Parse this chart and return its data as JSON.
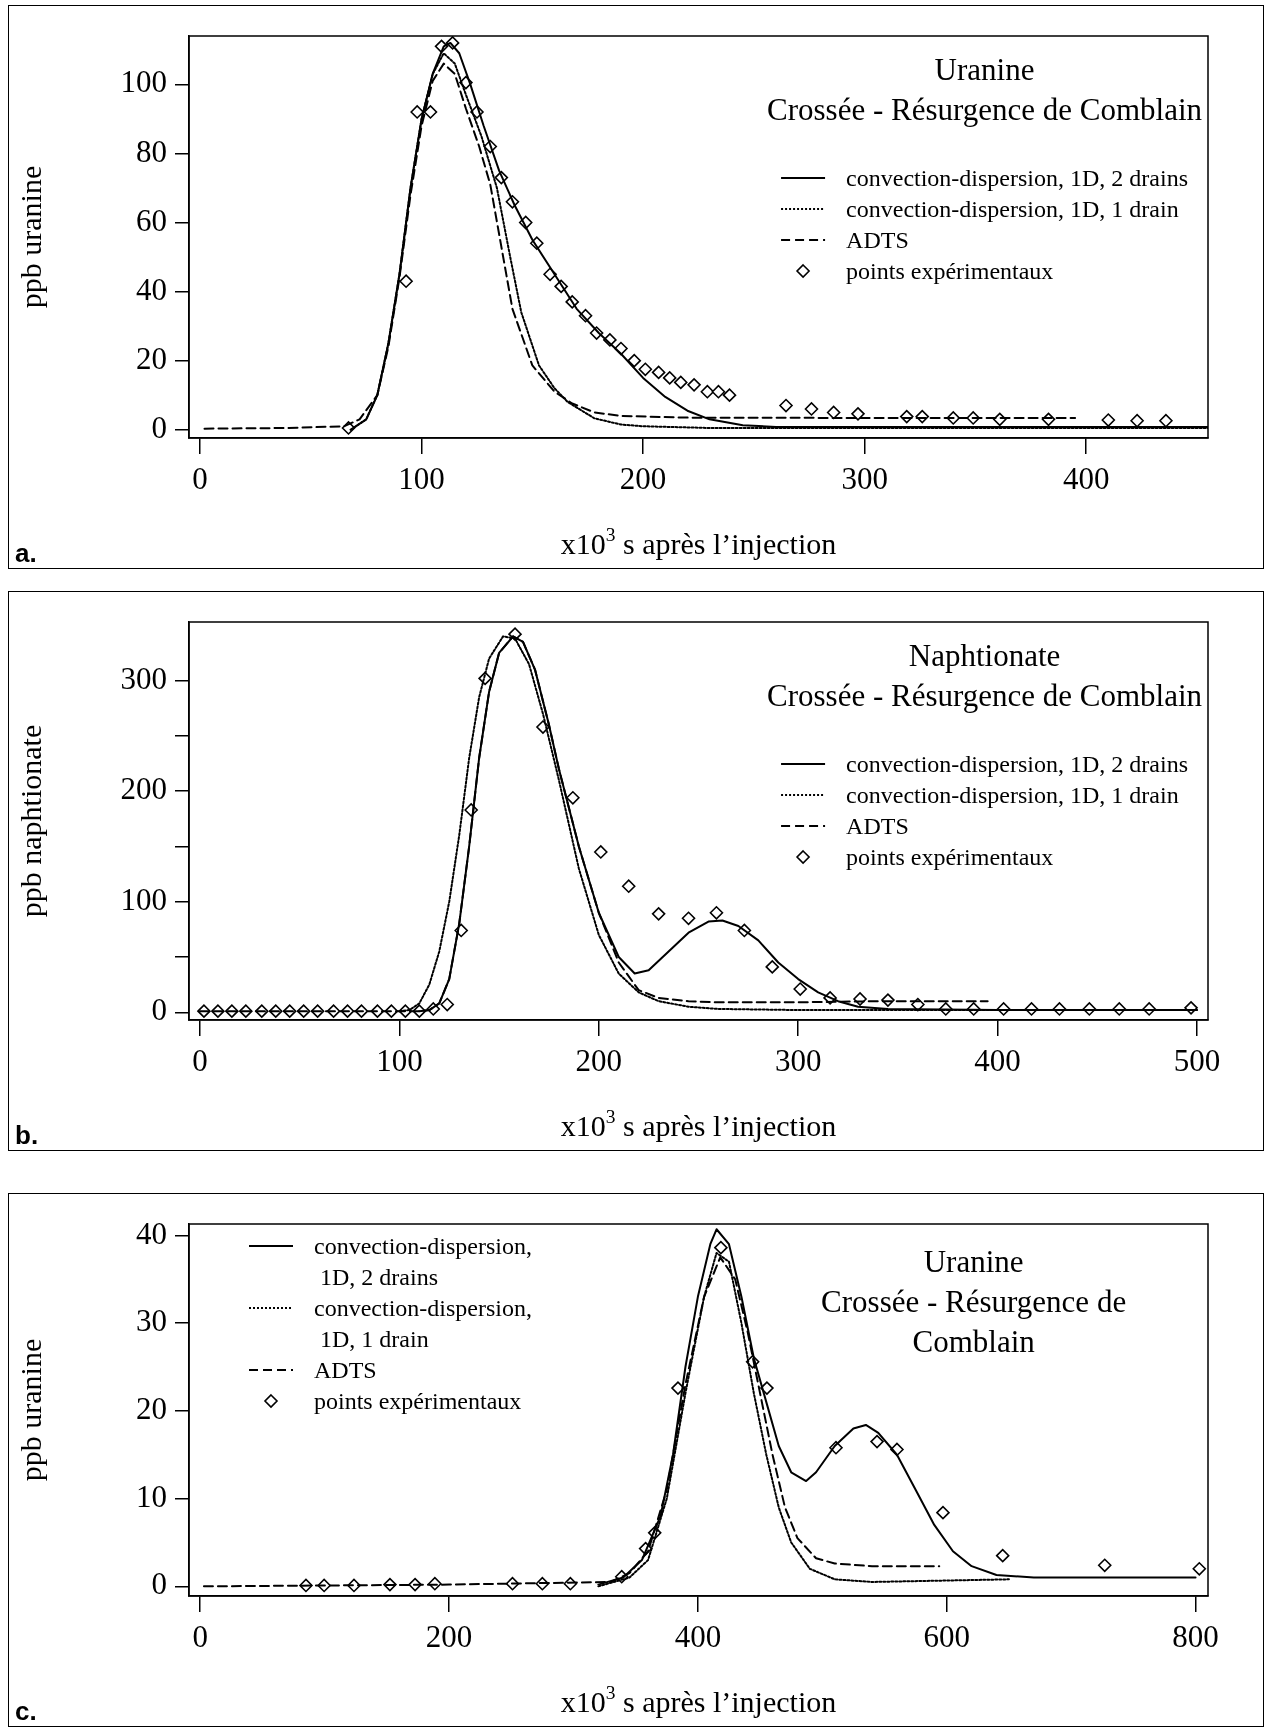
{
  "chart_data": [
    {
      "type": "line",
      "title": "Uranine",
      "subtitle": "Crossée - Résurgence de Comblain",
      "xlabel": "x10$^{3}$ s après l’injection",
      "ylabel": "ppb uranine",
      "annotations": [
        "a."
      ],
      "xlim": [
        -5,
        455
      ],
      "ylim": [
        -2.4,
        114
      ],
      "xticks": [
        0,
        100,
        200,
        300,
        400
      ],
      "yticks": [
        0,
        20,
        40,
        60,
        80,
        100
      ],
      "legend": "top right",
      "series": [
        {
          "name": "convection-dispersion, 1D, 2 drains",
          "line_style": "solid",
          "color": "#000000",
          "x": [
            68,
            75,
            80,
            85,
            90,
            95,
            100,
            105,
            110,
            113,
            117,
            122,
            128,
            135,
            142,
            150,
            160,
            170,
            180,
            190,
            200,
            210,
            220,
            230,
            245,
            260,
            300,
            455
          ],
          "values": [
            0,
            3,
            10,
            25,
            45,
            70,
            90,
            103,
            111,
            112,
            109,
            100,
            88,
            75,
            65,
            55,
            45,
            35,
            28,
            22,
            15,
            9.5,
            5.5,
            3,
            1.3,
            0.8,
            0.8,
            0.8
          ]
        },
        {
          "name": "convection-dispersion, 1D, 1 drain",
          "line_style": "dotted",
          "color": "#000000",
          "x": [
            68,
            75,
            80,
            85,
            90,
            95,
            100,
            105,
            110,
            115,
            120,
            127,
            134,
            140,
            145,
            153,
            160,
            166,
            178,
            190,
            200,
            230,
            455
          ],
          "values": [
            0,
            3,
            10,
            25,
            45,
            70,
            90,
            103,
            109,
            106,
            97,
            85,
            70,
            50,
            34,
            18.6,
            12,
            8,
            3.3,
            1.5,
            1,
            0.5,
            0.5
          ]
        },
        {
          "name": "ADTS",
          "line_style": "dashed",
          "color": "#000000",
          "x": [
            2,
            40,
            65,
            72,
            80,
            85,
            90,
            95,
            100,
            105,
            110,
            115,
            120,
            126,
            131,
            136,
            141,
            150,
            160,
            168,
            178,
            190,
            220,
            300,
            395
          ],
          "values": [
            0.3,
            0.5,
            1,
            3,
            10,
            24,
            44,
            68,
            88,
            101,
            106,
            103,
            93,
            82,
            71,
            53,
            35,
            18.6,
            11,
            7.6,
            5,
            4,
            3.5,
            3.4,
            3.4
          ]
        },
        {
          "name": "points expérimentaux",
          "type": "scatter",
          "marker": "diamond",
          "color": "#000000",
          "x": [
            67,
            93,
            98,
            104,
            109,
            114,
            120,
            125,
            131,
            136,
            141,
            147,
            152,
            158,
            163,
            168,
            174,
            179,
            185,
            190,
            196,
            201,
            207,
            212,
            217,
            223,
            229,
            234,
            239,
            264.5,
            276,
            286,
            297,
            319,
            326,
            340,
            349,
            361,
            383,
            410,
            423,
            436
          ],
          "values": [
            0.5,
            43,
            92,
            92,
            111,
            112,
            100.5,
            92,
            82,
            73,
            66,
            60,
            54,
            45,
            41.5,
            37,
            33,
            28,
            26,
            23.5,
            20,
            17.5,
            16.6,
            15,
            13.7,
            13,
            11,
            11,
            10,
            7,
            6,
            5,
            4.6,
            3.8,
            3.8,
            3.4,
            3.4,
            3,
            3,
            2.8,
            2.6,
            2.6
          ]
        }
      ]
    },
    {
      "type": "line",
      "title": "Naphtionate",
      "subtitle": "Crossée - Résurgence de Comblain",
      "xlabel": "x10$^{3}$ s après l’injection",
      "ylabel": "ppb naphtionate",
      "annotations": [
        "b."
      ],
      "xlim": [
        -5.5,
        505.5
      ],
      "ylim": [
        -7,
        353
      ],
      "xticks": [
        0,
        100,
        200,
        300,
        400,
        500
      ],
      "yticks": [
        0,
        {
          "value": 50,
          "label": null
        },
        100,
        {
          "value": 150,
          "label": null
        },
        200,
        {
          "value": 250,
          "label": null
        },
        300
      ],
      "legend": "top right",
      "series": [
        {
          "name": "convection-dispersion, 1D, 2 drains",
          "line_style": "solid",
          "color": "#000000",
          "x": [
            110,
            115,
            120,
            125,
            130,
            135,
            140,
            145,
            150,
            157,
            162,
            168,
            175,
            180,
            190,
            200,
            210,
            218,
            225,
            235,
            245,
            255,
            262,
            270,
            280,
            290,
            300,
            310,
            320,
            330,
            345,
            400,
            500
          ],
          "values": [
            1,
            2,
            8,
            30,
            80,
            150,
            230,
            290,
            325,
            340,
            335,
            310,
            260,
            220,
            150,
            90,
            50,
            35,
            38,
            55,
            72,
            82,
            83,
            78,
            65,
            45,
            30,
            18,
            10,
            5,
            3,
            2,
            2
          ]
        },
        {
          "name": "convection-dispersion, 1D, 1 drain",
          "line_style": "dotted",
          "color": "#000000",
          "x": [
            100,
            105,
            110,
            115,
            120,
            125,
            130,
            135,
            140,
            145,
            152,
            158,
            165,
            172,
            180,
            190,
            200,
            210,
            220,
            230,
            245,
            260,
            300,
            400,
            500
          ],
          "values": [
            1,
            2,
            8,
            25,
            55,
            100,
            160,
            230,
            285,
            320,
            340,
            338,
            315,
            270,
            210,
            130,
            70,
            35,
            18,
            10,
            5,
            3,
            2,
            2,
            2
          ]
        },
        {
          "name": "ADTS",
          "line_style": "dashed",
          "color": "#000000",
          "x": [
            0,
            110,
            115,
            120,
            125,
            130,
            135,
            140,
            145,
            150,
            157,
            162,
            168,
            175,
            180,
            190,
            200,
            210,
            220,
            230,
            245,
            260,
            300,
            340,
            395
          ],
          "values": [
            1,
            1,
            2,
            8,
            30,
            80,
            150,
            230,
            290,
            325,
            340,
            335,
            310,
            260,
            220,
            150,
            90,
            45,
            20,
            13,
            10,
            9,
            9,
            10,
            10
          ]
        },
        {
          "name": "points expérimentaux",
          "type": "scatter",
          "marker": "diamond",
          "color": "#000000",
          "x": [
            2,
            9,
            16,
            23,
            31,
            38,
            45,
            52,
            59,
            67,
            74,
            81,
            89,
            96,
            103,
            110,
            117,
            124,
            131,
            136,
            143,
            158,
            172,
            187,
            201,
            215,
            230,
            245,
            259,
            273,
            287,
            301,
            316,
            331,
            345,
            360,
            374,
            388,
            403,
            417,
            431,
            446,
            461,
            476,
            497
          ],
          "values": [
            1,
            1,
            1,
            1,
            1,
            1,
            1,
            1,
            1,
            1,
            1,
            1,
            1,
            1,
            1,
            1,
            3,
            7,
            74,
            183,
            302,
            342,
            258,
            194,
            145,
            114,
            89,
            85,
            90,
            74,
            41,
            21,
            13,
            12,
            11,
            7,
            3,
            3,
            3,
            3,
            3,
            3,
            3,
            3,
            4
          ]
        }
      ]
    },
    {
      "type": "line",
      "title": "Uranine",
      "subtitle": "Crossée - Résurgence de Comblain",
      "xlabel": "x10$^{3}$ s après l’injection",
      "ylabel": "ppb uranine",
      "annotations": [
        "c."
      ],
      "xlim": [
        -9,
        810
      ],
      "ylim": [
        -1.1,
        41.3
      ],
      "xticks": [
        0,
        200,
        400,
        600,
        800
      ],
      "yticks": [
        0,
        10,
        20,
        30,
        40
      ],
      "legend": "top left",
      "series": [
        {
          "name": "convection-dispersion, 1D, 2 drains",
          "line_style": "solid",
          "color": "#000000",
          "x": [
            320,
            340,
            355,
            370,
            380,
            390,
            400,
            410,
            415,
            425,
            435,
            445,
            455,
            465,
            475,
            487,
            495,
            510,
            525,
            535,
            545,
            560,
            575,
            590,
            605,
            620,
            640,
            670,
            800
          ],
          "values": [
            0.2,
            1,
            3,
            8,
            15,
            25,
            33,
            39,
            40.7,
            39,
            33,
            26,
            21,
            16,
            13,
            12,
            13,
            16,
            18,
            18.4,
            17.5,
            15,
            11,
            7,
            4,
            2.3,
            1.3,
            1,
            1
          ]
        },
        {
          "name": "convection-dispersion, 1D, 1 drain",
          "line_style": "dotted",
          "color": "#000000",
          "x": [
            320,
            345,
            360,
            375,
            390,
            405,
            415,
            425,
            435,
            445,
            455,
            465,
            475,
            490,
            510,
            540,
            650
          ],
          "values": [
            0,
            1,
            3,
            10,
            22,
            33,
            38,
            37,
            30,
            22,
            15,
            9,
            5,
            2,
            0.8,
            0.5,
            0.8
          ]
        },
        {
          "name": "ADTS",
          "line_style": "dashed",
          "color": "#000000",
          "x": [
            3,
            200,
            330,
            345,
            360,
            375,
            390,
            405,
            418,
            430,
            440,
            450,
            460,
            470,
            480,
            495,
            510,
            540,
            594
          ],
          "values": [
            0,
            0.2,
            0.5,
            1.5,
            4,
            11,
            23,
            33,
            37.5,
            35,
            29,
            22,
            15,
            9,
            5.5,
            3.2,
            2.6,
            2.3,
            2.3
          ]
        },
        {
          "name": "points expérimentaux",
          "type": "scatter",
          "marker": "diamond",
          "color": "#000000",
          "x": [
            85,
            99.6,
            123.6,
            152.5,
            172.7,
            188.6,
            251,
            275,
            297.5,
            338.8,
            358,
            365.3,
            384,
            418.5,
            444,
            455.5,
            511,
            544,
            560,
            597,
            645,
            727,
            803
          ],
          "values": [
            0.1,
            0.1,
            0.1,
            0.2,
            0.2,
            0.3,
            0.3,
            0.3,
            0.3,
            1.1,
            4.3,
            6.1,
            22.6,
            38.6,
            25.6,
            22.6,
            15.8,
            16.5,
            15.6,
            8.4,
            3.5,
            2.4,
            2
          ]
        }
      ]
    }
  ]
}
